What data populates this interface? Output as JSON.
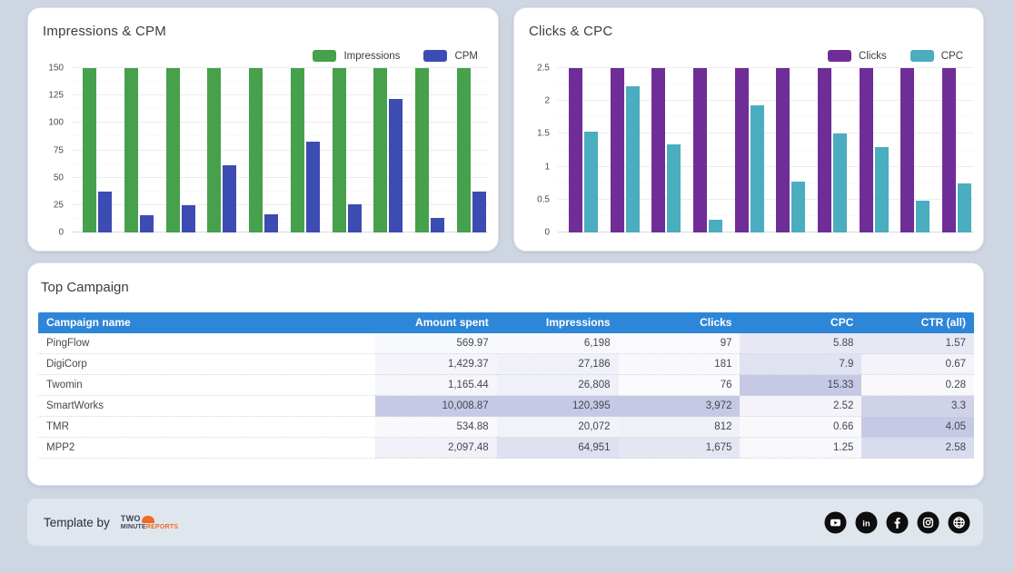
{
  "page": {
    "background": "#ced6e1"
  },
  "chart_data": [
    {
      "type": "bar",
      "title": "Impressions & CPM",
      "ylim": [
        0,
        150
      ],
      "y_ticks": [
        "150",
        "125",
        "100",
        "75",
        "50",
        "25",
        "0"
      ],
      "x_tick_labels_visible": false,
      "grid": true,
      "legend_position": "top-right",
      "series": [
        {
          "name": "Impressions",
          "color": "#47a04b",
          "clipped_at_axis_max": true,
          "values": [
            150,
            150,
            150,
            150,
            150,
            150,
            150,
            150,
            150,
            150
          ]
        },
        {
          "name": "CPM",
          "color": "#3c4cb2",
          "values": [
            37,
            16,
            25,
            61,
            17,
            83,
            26,
            122,
            13,
            37
          ]
        }
      ]
    },
    {
      "type": "bar",
      "title": "Clicks & CPC",
      "ylim": [
        0,
        2.5
      ],
      "y_ticks": [
        "2.5",
        "2",
        "1.5",
        "1",
        "0.5",
        "0"
      ],
      "x_tick_labels_visible": false,
      "grid": true,
      "legend_position": "top-right",
      "series": [
        {
          "name": "Clicks",
          "color": "#6f2d97",
          "clipped_at_axis_max": true,
          "values": [
            2.5,
            2.5,
            2.5,
            2.5,
            2.5,
            2.5,
            2.5,
            2.5,
            2.5,
            2.5
          ]
        },
        {
          "name": "CPC",
          "color": "#4aadc0",
          "values": [
            1.53,
            2.22,
            1.34,
            0.19,
            1.94,
            0.77,
            1.5,
            1.3,
            0.48,
            0.75
          ]
        }
      ]
    }
  ],
  "table": {
    "title": "Top Campaign",
    "header_bg": "#2e86d8",
    "heat_rgb": "183,187,222",
    "columns": [
      "Campaign name",
      "Amount spent",
      "Impressions",
      "Clicks",
      "CPC",
      "CTR (all)"
    ],
    "rows": [
      {
        "cells": [
          "PingFlow",
          "569.97",
          "6,198",
          "97",
          "5.88",
          "1.57"
        ],
        "nums": [
          569.97,
          6198,
          97,
          5.88,
          1.57
        ]
      },
      {
        "cells": [
          "DigiCorp",
          "1,429.37",
          "27,186",
          "181",
          "7.9",
          "0.67"
        ],
        "nums": [
          1429.37,
          27186,
          181,
          7.9,
          0.67
        ]
      },
      {
        "cells": [
          "Twomin",
          "1,165.44",
          "26,808",
          "76",
          "15.33",
          "0.28"
        ],
        "nums": [
          1165.44,
          26808,
          76,
          15.33,
          0.28
        ]
      },
      {
        "cells": [
          "SmartWorks",
          "10,008.87",
          "120,395",
          "3,972",
          "2.52",
          "3.3"
        ],
        "nums": [
          10008.87,
          120395,
          3972,
          2.52,
          3.3
        ]
      },
      {
        "cells": [
          "TMR",
          "534.88",
          "20,072",
          "812",
          "0.66",
          "4.05"
        ],
        "nums": [
          534.88,
          20072,
          812,
          0.66,
          4.05
        ]
      },
      {
        "cells": [
          "MPP2",
          "2,097.48",
          "64,951",
          "1,675",
          "1.25",
          "2.58"
        ],
        "nums": [
          2097.48,
          64951,
          1675,
          1.25,
          2.58
        ]
      }
    ]
  },
  "footer": {
    "label": "Template by",
    "logo": {
      "line1": "TWO",
      "line2_dark": "MINUTE",
      "line2_accent": "REPORTS",
      "accent_color": "#f26a21"
    },
    "social_icons": [
      "youtube",
      "linkedin",
      "facebook",
      "instagram",
      "globe"
    ]
  }
}
